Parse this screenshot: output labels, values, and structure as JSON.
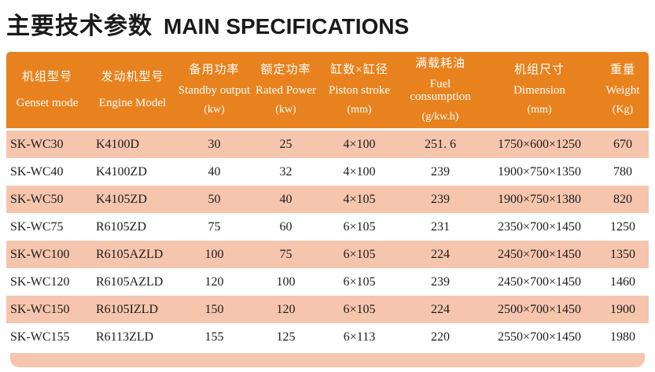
{
  "title": {
    "zh": "主要技术参数",
    "en": "MAIN SPECIFICATIONS"
  },
  "colors": {
    "header_bg": "#e8821e",
    "header_text": "#ffffff",
    "row_alt_bg": "#f6c5ad",
    "footer_bar_bg": "#f6c5ad",
    "body_text": "#1c1c1c",
    "title_text": "#1a1a1a"
  },
  "table": {
    "columns": [
      {
        "zh": "机组型号",
        "en": "Genset mode",
        "unit": ""
      },
      {
        "zh": "发动机型号",
        "en": "Engine Model",
        "unit": ""
      },
      {
        "zh": "备用功率",
        "en": "Standby output",
        "unit": "(kw)"
      },
      {
        "zh": "额定功率",
        "en": "Rated Power",
        "unit": "(kw)"
      },
      {
        "zh": "缸数×缸径",
        "en": "Piston stroke",
        "unit": "(mm)"
      },
      {
        "zh": "满载耗油",
        "en": "Fuel consumption",
        "unit": "(g/kw.h)"
      },
      {
        "zh": "机组尺寸",
        "en": "Dimension",
        "unit": "(mm)"
      },
      {
        "zh": "重量",
        "en": "Weight",
        "unit": "(Kg)"
      }
    ],
    "rows": [
      [
        "SK-WC30",
        "K4100D",
        "30",
        "25",
        "4×100",
        "251. 6",
        "1750×600×1250",
        "670"
      ],
      [
        "SK-WC40",
        "K4100ZD",
        "40",
        "32",
        "4×100",
        "239",
        "1900×750×1350",
        "780"
      ],
      [
        "SK-WC50",
        "K4105ZD",
        "50",
        "40",
        "4×105",
        "239",
        "1900×750×1380",
        "820"
      ],
      [
        "SK-WC75",
        "R6105ZD",
        "75",
        "60",
        "6×105",
        "231",
        "2350×700×1450",
        "1250"
      ],
      [
        "SK-WC100",
        "R6105AZLD",
        "100",
        "75",
        "6×105",
        "224",
        "2450×700×1450",
        "1350"
      ],
      [
        "SK-WC120",
        "R6105AZLD",
        "120",
        "100",
        "6×105",
        "239",
        "2450×700×1450",
        "1460"
      ],
      [
        "SK-WC150",
        "R6105IZLD",
        "150",
        "120",
        "6×105",
        "224",
        "2500×700×1450",
        "1900"
      ],
      [
        "SK-WC155",
        "R6113ZLD",
        "155",
        "125",
        "6×113",
        "220",
        "2550×700×1450",
        "1980"
      ]
    ]
  }
}
